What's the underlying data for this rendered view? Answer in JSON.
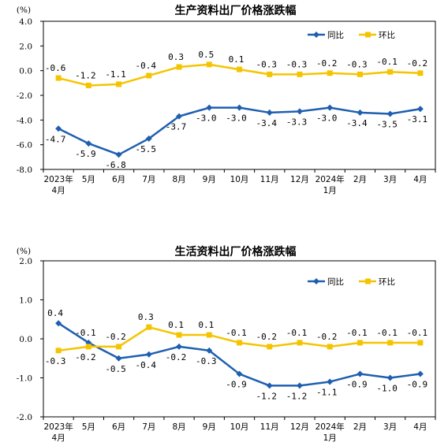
{
  "colors": {
    "yoy": "#1F5FB0",
    "mom": "#F5C400",
    "axis": "#000000",
    "background": "#FFFFFF"
  },
  "chart_data": [
    {
      "type": "line",
      "title": "生产资料出厂价格涨跌幅",
      "ylabel": "(%)",
      "ylim": [
        -8.0,
        4.0
      ],
      "yticks": [
        "4.0",
        "2.0",
        "0.0",
        "-2.0",
        "-4.0",
        "-6.0",
        "-8.0"
      ],
      "ytick_values": [
        4,
        2,
        0,
        -2,
        -4,
        -6,
        -8
      ],
      "categories": [
        {
          "line1": "2023年",
          "line2": "4月"
        },
        {
          "line1": "5月",
          "line2": ""
        },
        {
          "line1": "6月",
          "line2": ""
        },
        {
          "line1": "7月",
          "line2": ""
        },
        {
          "line1": "8月",
          "line2": ""
        },
        {
          "line1": "9月",
          "line2": ""
        },
        {
          "line1": "10月",
          "line2": ""
        },
        {
          "line1": "11月",
          "line2": ""
        },
        {
          "line1": "12月",
          "line2": ""
        },
        {
          "line1": "2024年",
          "line2": "1月"
        },
        {
          "line1": "2月",
          "line2": ""
        },
        {
          "line1": "3月",
          "line2": ""
        },
        {
          "line1": "4月",
          "line2": ""
        }
      ],
      "grid": false,
      "legend": "top-right",
      "series": [
        {
          "name": "同比",
          "key": "yoy",
          "values": [
            -4.7,
            -5.9,
            -6.8,
            -5.5,
            -3.7,
            -3.0,
            -3.0,
            -3.4,
            -3.3,
            -3.0,
            -3.4,
            -3.5,
            -3.1
          ],
          "labels": [
            "-4.7",
            "-5.9",
            "-6.8",
            "-5.5",
            "-3.7",
            "-3.0",
            "-3.0",
            "-3.4",
            "-3.3",
            "-3.0",
            "-3.4",
            "-3.5",
            "-3.1"
          ]
        },
        {
          "name": "环比",
          "key": "mom",
          "values": [
            -0.6,
            -1.2,
            -1.1,
            -0.4,
            0.3,
            0.5,
            0.1,
            -0.3,
            -0.3,
            -0.2,
            -0.3,
            -0.1,
            -0.2
          ],
          "labels": [
            "-0.6",
            "-1.2",
            "-1.1",
            "-0.4",
            "0.3",
            "0.5",
            "0.1",
            "-0.3",
            "-0.3",
            "-0.2",
            "-0.3",
            "-0.1",
            "-0.2"
          ]
        }
      ]
    },
    {
      "type": "line",
      "title": "生活资料出厂价格涨跌幅",
      "ylabel": "(%)",
      "ylim": [
        -2.0,
        2.0
      ],
      "yticks": [
        "2.0",
        "1.0",
        "0.0",
        "-1.0",
        "-2.0"
      ],
      "ytick_values": [
        2,
        1,
        0,
        -1,
        -2
      ],
      "categories": [
        {
          "line1": "2023年",
          "line2": "4月"
        },
        {
          "line1": "5月",
          "line2": ""
        },
        {
          "line1": "6月",
          "line2": ""
        },
        {
          "line1": "7月",
          "line2": ""
        },
        {
          "line1": "8月",
          "line2": ""
        },
        {
          "line1": "9月",
          "line2": ""
        },
        {
          "line1": "10月",
          "line2": ""
        },
        {
          "line1": "11月",
          "line2": ""
        },
        {
          "line1": "12月",
          "line2": ""
        },
        {
          "line1": "2024年",
          "line2": "1月"
        },
        {
          "line1": "2月",
          "line2": ""
        },
        {
          "line1": "3月",
          "line2": ""
        },
        {
          "line1": "4月",
          "line2": ""
        }
      ],
      "grid": false,
      "legend": "top-right",
      "series": [
        {
          "name": "同比",
          "key": "yoy",
          "values": [
            0.4,
            -0.1,
            -0.5,
            -0.4,
            -0.2,
            -0.3,
            -0.9,
            -1.2,
            -1.2,
            -1.1,
            -0.9,
            -1.0,
            -0.9
          ],
          "labels": [
            "0.4",
            "-0.1",
            "-0.5",
            "-0.4",
            "-0.2",
            "-0.3",
            "-0.9",
            "-1.2",
            "-1.2",
            "-1.1",
            "-0.9",
            "-1.0",
            "-0.9"
          ]
        },
        {
          "name": "环比",
          "key": "mom",
          "values": [
            -0.3,
            -0.2,
            -0.2,
            0.3,
            0.1,
            0.1,
            -0.1,
            -0.2,
            -0.1,
            -0.2,
            -0.1,
            -0.1,
            -0.1
          ],
          "labels": [
            "-0.3",
            "-0.2",
            "-0.2",
            "0.3",
            "0.1",
            "0.1",
            "-0.1",
            "-0.2",
            "-0.1",
            "-0.2",
            "-0.1",
            "-0.1",
            "-0.1"
          ]
        }
      ]
    }
  ]
}
